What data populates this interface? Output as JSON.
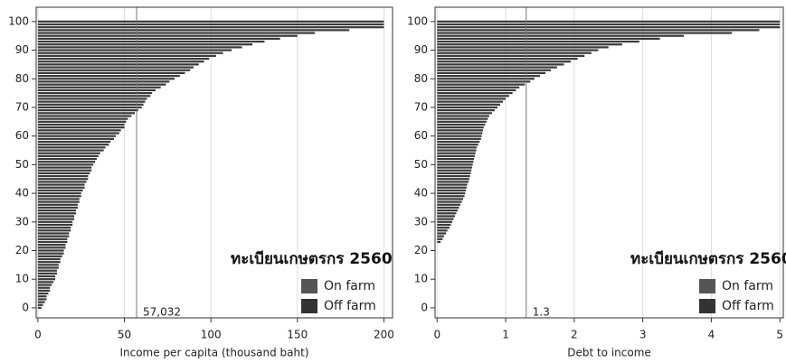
{
  "chart_data": [
    {
      "type": "barh",
      "xlabel": "Income per capita (thousand baht)",
      "annotation": "ทะเบียนเกษตรกร 2560",
      "legend": [
        {
          "name": "On farm",
          "color": "#555555"
        },
        {
          "name": "Off farm",
          "color": "#333333"
        }
      ],
      "color": "#3a3a3a",
      "grid": true,
      "xlim": [
        -1,
        205
      ],
      "xticks": [
        0,
        50,
        100,
        150,
        200
      ],
      "ylim": [
        -3.5,
        105
      ],
      "yticks": [
        0,
        10,
        20,
        30,
        40,
        50,
        60,
        70,
        80,
        90,
        100
      ],
      "ref_line": {
        "value": 57.032,
        "label": "57,032"
      },
      "y": [
        0,
        1,
        2,
        3,
        4,
        5,
        6,
        7,
        8,
        9,
        10,
        11,
        12,
        13,
        14,
        15,
        16,
        17,
        18,
        19,
        20,
        21,
        22,
        23,
        24,
        25,
        26,
        27,
        28,
        29,
        30,
        31,
        32,
        33,
        34,
        35,
        36,
        37,
        38,
        39,
        40,
        41,
        42,
        43,
        44,
        45,
        46,
        47,
        48,
        49,
        50,
        51,
        52,
        53,
        54,
        55,
        56,
        57,
        58,
        59,
        60,
        61,
        62,
        63,
        64,
        65,
        66,
        67,
        68,
        69,
        70,
        71,
        72,
        73,
        74,
        75,
        76,
        77,
        78,
        79,
        80,
        81,
        82,
        83,
        84,
        85,
        86,
        87,
        88,
        89,
        90,
        91,
        92,
        93,
        94,
        95,
        96,
        97,
        98,
        99,
        100
      ],
      "values": [
        2,
        3,
        4,
        5,
        5,
        6,
        7,
        7,
        8,
        9,
        10,
        10,
        11,
        11,
        12,
        12,
        13,
        13,
        14,
        15,
        15,
        16,
        16,
        17,
        17,
        18,
        18,
        19,
        19,
        20,
        20,
        21,
        21,
        22,
        22,
        23,
        23,
        24,
        24,
        25,
        25,
        26,
        27,
        27,
        28,
        29,
        29,
        30,
        31,
        31,
        32,
        33,
        34,
        35,
        36,
        38,
        39,
        41,
        42,
        44,
        45,
        47,
        48,
        50,
        50,
        51,
        52,
        54,
        56,
        58,
        60,
        61,
        62,
        63,
        65,
        66,
        68,
        71,
        74,
        76,
        79,
        82,
        85,
        88,
        90,
        93,
        96,
        99,
        103,
        107,
        112,
        118,
        124,
        131,
        140,
        150,
        160,
        180,
        200,
        200,
        200
      ]
    },
    {
      "type": "barh",
      "xlabel": "Debt to income",
      "annotation": "ทะเบียนเกษตรกร 2560",
      "legend": [
        {
          "name": "On farm",
          "color": "#555555"
        },
        {
          "name": "Off farm",
          "color": "#333333"
        }
      ],
      "color": "#3a3a3a",
      "grid": true,
      "xlim": [
        -0.03,
        5.05
      ],
      "xticks": [
        0,
        1,
        2,
        3,
        4,
        5
      ],
      "ylim": [
        -3.5,
        105
      ],
      "yticks": [
        0,
        10,
        20,
        30,
        40,
        50,
        60,
        70,
        80,
        90,
        100
      ],
      "ref_line": {
        "value": 1.3,
        "label": "1.3"
      },
      "y": [
        0,
        1,
        2,
        3,
        4,
        5,
        6,
        7,
        8,
        9,
        10,
        11,
        12,
        13,
        14,
        15,
        16,
        17,
        18,
        19,
        20,
        21,
        22,
        23,
        24,
        25,
        26,
        27,
        28,
        29,
        30,
        31,
        32,
        33,
        34,
        35,
        36,
        37,
        38,
        39,
        40,
        41,
        42,
        43,
        44,
        45,
        46,
        47,
        48,
        49,
        50,
        51,
        52,
        53,
        54,
        55,
        56,
        57,
        58,
        59,
        60,
        61,
        62,
        63,
        64,
        65,
        66,
        67,
        68,
        69,
        70,
        71,
        72,
        73,
        74,
        75,
        76,
        77,
        78,
        79,
        80,
        81,
        82,
        83,
        84,
        85,
        86,
        87,
        88,
        89,
        90,
        91,
        92,
        93,
        94,
        95,
        96,
        97,
        98,
        99,
        100
      ],
      "values": [
        0,
        0,
        0,
        0,
        0,
        0,
        0,
        0,
        0,
        0,
        0,
        0,
        0,
        0,
        0,
        0,
        0,
        0,
        0,
        0,
        0,
        0,
        0,
        0.05,
        0.08,
        0.1,
        0.13,
        0.15,
        0.18,
        0.2,
        0.22,
        0.24,
        0.26,
        0.28,
        0.3,
        0.32,
        0.34,
        0.36,
        0.38,
        0.4,
        0.41,
        0.42,
        0.43,
        0.44,
        0.46,
        0.47,
        0.48,
        0.49,
        0.5,
        0.51,
        0.52,
        0.53,
        0.54,
        0.55,
        0.56,
        0.57,
        0.58,
        0.6,
        0.62,
        0.64,
        0.65,
        0.66,
        0.67,
        0.68,
        0.7,
        0.72,
        0.74,
        0.76,
        0.8,
        0.84,
        0.88,
        0.92,
        0.96,
        1.0,
        1.05,
        1.1,
        1.15,
        1.2,
        1.28,
        1.36,
        1.42,
        1.5,
        1.58,
        1.66,
        1.75,
        1.85,
        1.95,
        2.05,
        2.15,
        2.25,
        2.35,
        2.5,
        2.7,
        2.95,
        3.25,
        3.6,
        4.3,
        4.7,
        5,
        5,
        5
      ]
    }
  ]
}
